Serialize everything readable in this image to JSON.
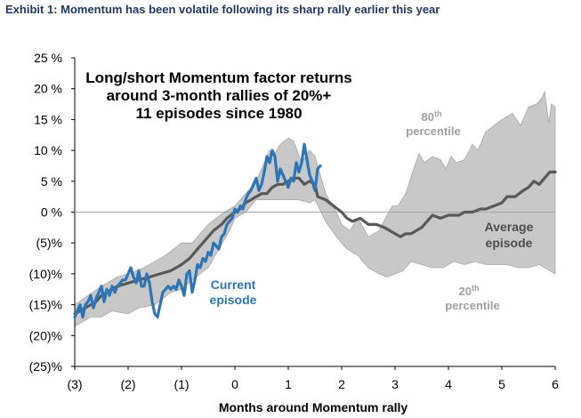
{
  "exhibit_title": "Exhibit 1: Momentum has been volatile following its sharp rally earlier this year",
  "chart_data": {
    "type": "line",
    "title_lines": [
      "Long/short Momentum factor returns",
      "around 3-month rallies of 20%+",
      "11 episodes since 1980"
    ],
    "xlabel": "Months around Momentum rally",
    "ylabel": "",
    "xlim": [
      -3,
      6
    ],
    "ylim": [
      -25,
      25
    ],
    "x_ticks": [
      -3,
      -2,
      -1,
      0,
      1,
      2,
      3,
      4,
      5,
      6
    ],
    "x_tick_labels": [
      "(3)",
      "(2)",
      "(1)",
      "0",
      "1",
      "2",
      "3",
      "4",
      "5",
      "6"
    ],
    "y_ticks": [
      25,
      20,
      15,
      10,
      5,
      0,
      -5,
      -10,
      -15,
      -20,
      -25
    ],
    "y_tick_labels": [
      "25 %",
      "20 %",
      "15 %",
      "10 %",
      "5 %",
      "0 %",
      "(5)%",
      "(10)%",
      "(15)%",
      "(20)%",
      "(25)%"
    ],
    "grid": false,
    "zero_line": true,
    "colors": {
      "band": "#c8c8c8",
      "band_edge": "#a6a6a6",
      "average": "#595959",
      "current": "#2e75b6",
      "title": "#1f3864"
    },
    "band": {
      "name": "20th-80th percentile range",
      "upper": [
        [
          -3,
          -15
        ],
        [
          -2.5,
          -12
        ],
        [
          -2.2,
          -10.5
        ],
        [
          -2,
          -10
        ],
        [
          -1.7,
          -9
        ],
        [
          -1.3,
          -7
        ],
        [
          -1,
          -5
        ],
        [
          -0.8,
          -5
        ],
        [
          -0.5,
          -2
        ],
        [
          -0.2,
          0
        ],
        [
          0,
          1
        ],
        [
          0.2,
          3
        ],
        [
          0.4,
          5
        ],
        [
          0.55,
          8
        ],
        [
          0.65,
          10
        ],
        [
          0.75,
          9.5
        ],
        [
          0.85,
          11
        ],
        [
          1,
          12
        ],
        [
          1.1,
          11.5
        ],
        [
          1.25,
          8
        ],
        [
          1.4,
          10
        ],
        [
          1.5,
          9
        ],
        [
          1.7,
          3
        ],
        [
          1.9,
          0
        ],
        [
          2,
          -2
        ],
        [
          2.15,
          -3
        ],
        [
          2.3,
          -1
        ],
        [
          2.5,
          -4
        ],
        [
          2.7,
          -3
        ],
        [
          2.85,
          -0.5
        ],
        [
          2.95,
          1
        ],
        [
          3.05,
          1
        ],
        [
          3.2,
          3
        ],
        [
          3.35,
          7
        ],
        [
          3.45,
          9.5
        ],
        [
          3.55,
          8
        ],
        [
          3.7,
          9
        ],
        [
          3.85,
          8.5
        ],
        [
          3.95,
          7
        ],
        [
          4.05,
          9
        ],
        [
          4.15,
          8
        ],
        [
          4.3,
          8.5
        ],
        [
          4.45,
          11
        ],
        [
          4.55,
          10
        ],
        [
          4.7,
          13
        ],
        [
          4.85,
          14
        ],
        [
          5,
          15
        ],
        [
          5.2,
          16
        ],
        [
          5.35,
          14
        ],
        [
          5.5,
          17
        ],
        [
          5.65,
          17.5
        ],
        [
          5.75,
          18.5
        ],
        [
          5.8,
          19.5
        ],
        [
          5.88,
          14.5
        ],
        [
          5.93,
          17.5
        ],
        [
          6,
          17
        ]
      ],
      "lower": [
        [
          -3,
          -18.5
        ],
        [
          -2.7,
          -17
        ],
        [
          -2.5,
          -17
        ],
        [
          -2.3,
          -16
        ],
        [
          -2,
          -16.5
        ],
        [
          -1.8,
          -15.5
        ],
        [
          -1.5,
          -15
        ],
        [
          -1.2,
          -13
        ],
        [
          -1,
          -12.5
        ],
        [
          -0.8,
          -11
        ],
        [
          -0.5,
          -9
        ],
        [
          -0.3,
          -6
        ],
        [
          -0.1,
          -3
        ],
        [
          0,
          -1
        ],
        [
          0.2,
          0
        ],
        [
          0.4,
          2
        ],
        [
          0.6,
          2
        ],
        [
          0.8,
          2
        ],
        [
          1,
          2
        ],
        [
          1.2,
          2
        ],
        [
          1.4,
          1.5
        ],
        [
          1.5,
          2
        ],
        [
          1.7,
          -1.5
        ],
        [
          1.9,
          -4
        ],
        [
          2.1,
          -6
        ],
        [
          2.3,
          -7
        ],
        [
          2.5,
          -9
        ],
        [
          2.7,
          -10
        ],
        [
          2.85,
          -10.5
        ],
        [
          3,
          -10
        ],
        [
          3.15,
          -9.5
        ],
        [
          3.3,
          -8
        ],
        [
          3.5,
          -8.5
        ],
        [
          3.7,
          -9
        ],
        [
          3.9,
          -9
        ],
        [
          4.1,
          -8
        ],
        [
          4.3,
          -8.5
        ],
        [
          4.5,
          -8
        ],
        [
          4.7,
          -8.5
        ],
        [
          4.9,
          -8.5
        ],
        [
          5.1,
          -8.5
        ],
        [
          5.3,
          -9
        ],
        [
          5.5,
          -9
        ],
        [
          5.7,
          -8.5
        ],
        [
          5.9,
          -9.5
        ],
        [
          6,
          -10
        ]
      ]
    },
    "series": [
      {
        "name": "Average episode",
        "points": [
          [
            -3,
            -16.5
          ],
          [
            -2.8,
            -15.5
          ],
          [
            -2.6,
            -14.5
          ],
          [
            -2.5,
            -13.5
          ],
          [
            -2.3,
            -12.5
          ],
          [
            -2.2,
            -12
          ],
          [
            -2,
            -11.5
          ],
          [
            -1.8,
            -11
          ],
          [
            -1.6,
            -10.5
          ],
          [
            -1.4,
            -10
          ],
          [
            -1.2,
            -9.5
          ],
          [
            -1,
            -8.5
          ],
          [
            -0.85,
            -7.5
          ],
          [
            -0.7,
            -6
          ],
          [
            -0.55,
            -4.5
          ],
          [
            -0.4,
            -3
          ],
          [
            -0.25,
            -2
          ],
          [
            -0.15,
            -1
          ],
          [
            0,
            0
          ],
          [
            0.1,
            0.5
          ],
          [
            0.2,
            1.5
          ],
          [
            0.3,
            2
          ],
          [
            0.4,
            2.5
          ],
          [
            0.5,
            3
          ],
          [
            0.6,
            3
          ],
          [
            0.7,
            4
          ],
          [
            0.8,
            4.5
          ],
          [
            0.9,
            4.5
          ],
          [
            1,
            5
          ],
          [
            1.1,
            5.5
          ],
          [
            1.2,
            5.5
          ],
          [
            1.3,
            4.5
          ],
          [
            1.4,
            5
          ],
          [
            1.5,
            4.5
          ],
          [
            1.55,
            2.5
          ],
          [
            1.7,
            2
          ],
          [
            1.85,
            1
          ],
          [
            2,
            0
          ],
          [
            2.1,
            -1
          ],
          [
            2.2,
            -1.5
          ],
          [
            2.35,
            -1
          ],
          [
            2.5,
            -2
          ],
          [
            2.65,
            -2
          ],
          [
            2.8,
            -2.5
          ],
          [
            2.9,
            -3
          ],
          [
            3,
            -3.5
          ],
          [
            3.1,
            -4
          ],
          [
            3.2,
            -3.5
          ],
          [
            3.3,
            -3.5
          ],
          [
            3.4,
            -3
          ],
          [
            3.5,
            -2.5
          ],
          [
            3.6,
            -1.5
          ],
          [
            3.7,
            -0.5
          ],
          [
            3.85,
            -1
          ],
          [
            4,
            -0.5
          ],
          [
            4.1,
            -0.5
          ],
          [
            4.2,
            -0.5
          ],
          [
            4.3,
            0
          ],
          [
            4.45,
            0
          ],
          [
            4.6,
            0.5
          ],
          [
            4.7,
            0.5
          ],
          [
            4.85,
            1
          ],
          [
            5,
            1.5
          ],
          [
            5.1,
            2.5
          ],
          [
            5.25,
            2.5
          ],
          [
            5.4,
            3.5
          ],
          [
            5.5,
            4
          ],
          [
            5.6,
            5
          ],
          [
            5.7,
            4.5
          ],
          [
            5.8,
            5.5
          ],
          [
            5.9,
            6.5
          ],
          [
            6,
            6.5
          ]
        ]
      },
      {
        "name": "Current episode",
        "points": [
          [
            -3,
            -17
          ],
          [
            -2.95,
            -16
          ],
          [
            -2.9,
            -15
          ],
          [
            -2.85,
            -17
          ],
          [
            -2.8,
            -15
          ],
          [
            -2.75,
            -14.5
          ],
          [
            -2.7,
            -13.5
          ],
          [
            -2.65,
            -15.5
          ],
          [
            -2.6,
            -14
          ],
          [
            -2.55,
            -13
          ],
          [
            -2.5,
            -12
          ],
          [
            -2.45,
            -14.5
          ],
          [
            -2.4,
            -12.5
          ],
          [
            -2.35,
            -13.5
          ],
          [
            -2.3,
            -12
          ],
          [
            -2.25,
            -13
          ],
          [
            -2.2,
            -12
          ],
          [
            -2.15,
            -11.5
          ],
          [
            -2.1,
            -11
          ],
          [
            -2.05,
            -11
          ],
          [
            -2,
            -10
          ],
          [
            -1.95,
            -9
          ],
          [
            -1.9,
            -10.5
          ],
          [
            -1.85,
            -11.5
          ],
          [
            -1.8,
            -9.5
          ],
          [
            -1.75,
            -12
          ],
          [
            -1.7,
            -12
          ],
          [
            -1.65,
            -10
          ],
          [
            -1.6,
            -11.5
          ],
          [
            -1.55,
            -14.5
          ],
          [
            -1.5,
            -16.5
          ],
          [
            -1.45,
            -17
          ],
          [
            -1.4,
            -15
          ],
          [
            -1.35,
            -13
          ],
          [
            -1.3,
            -12.5
          ],
          [
            -1.25,
            -12
          ],
          [
            -1.2,
            -12.5
          ],
          [
            -1.15,
            -12
          ],
          [
            -1.1,
            -12.5
          ],
          [
            -1.05,
            -11
          ],
          [
            -1,
            -12
          ],
          [
            -0.95,
            -13.5
          ],
          [
            -0.9,
            -10
          ],
          [
            -0.85,
            -9.5
          ],
          [
            -0.8,
            -13
          ],
          [
            -0.75,
            -11
          ],
          [
            -0.7,
            -8.5
          ],
          [
            -0.65,
            -9
          ],
          [
            -0.6,
            -7.5
          ],
          [
            -0.55,
            -8
          ],
          [
            -0.5,
            -6.5
          ],
          [
            -0.45,
            -7
          ],
          [
            -0.4,
            -5
          ],
          [
            -0.35,
            -5.5
          ],
          [
            -0.3,
            -6
          ],
          [
            -0.25,
            -4
          ],
          [
            -0.2,
            -3.5
          ],
          [
            -0.15,
            -2
          ],
          [
            -0.1,
            -1.5
          ],
          [
            -0.05,
            -1
          ],
          [
            0,
            0.5
          ],
          [
            0.05,
            0
          ],
          [
            0.1,
            1
          ],
          [
            0.15,
            0.5
          ],
          [
            0.2,
            2
          ],
          [
            0.25,
            3
          ],
          [
            0.3,
            3.5
          ],
          [
            0.35,
            4.5
          ],
          [
            0.4,
            5.5
          ],
          [
            0.45,
            3.5
          ],
          [
            0.5,
            4.5
          ],
          [
            0.55,
            6.5
          ],
          [
            0.6,
            9
          ],
          [
            0.65,
            8
          ],
          [
            0.7,
            10
          ],
          [
            0.75,
            9
          ],
          [
            0.8,
            5
          ],
          [
            0.85,
            7
          ],
          [
            0.9,
            6
          ],
          [
            0.95,
            5
          ],
          [
            1,
            4
          ],
          [
            1.05,
            5.5
          ],
          [
            1.1,
            5
          ],
          [
            1.15,
            8
          ],
          [
            1.2,
            6.5
          ],
          [
            1.25,
            8
          ],
          [
            1.3,
            11
          ],
          [
            1.35,
            8.5
          ],
          [
            1.4,
            6
          ],
          [
            1.45,
            5
          ],
          [
            1.5,
            3.5
          ],
          [
            1.55,
            7
          ],
          [
            1.6,
            7.5
          ]
        ]
      }
    ],
    "annotations": [
      {
        "text": "Average episode",
        "lines": [
          "Average",
          "episode"
        ]
      },
      {
        "text": "Current episode",
        "lines": [
          "Current",
          "episode"
        ]
      },
      {
        "text": "80th percentile",
        "sup": "th",
        "lines": [
          "80",
          "percentile"
        ]
      },
      {
        "text": "20th percentile",
        "sup": "th",
        "lines": [
          "20",
          "percentile"
        ]
      }
    ]
  }
}
